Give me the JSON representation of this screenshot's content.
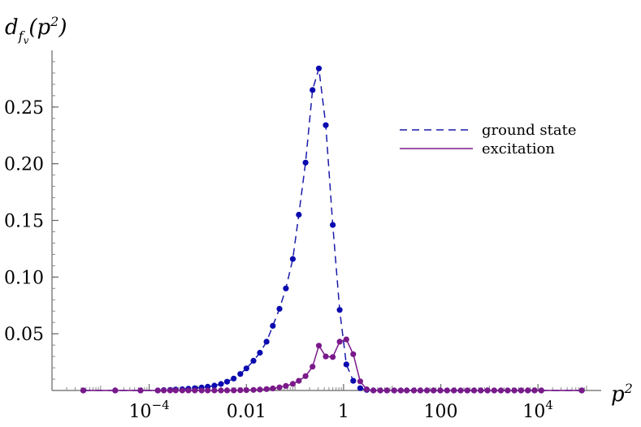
{
  "chart_data": {
    "type": "line",
    "x_scale": "log",
    "xlabel": "p^2",
    "ylabel": "d_{f_v}(p^2)",
    "xlim": [
      1e-06,
      200000
    ],
    "ylim": [
      0,
      0.3
    ],
    "x_ticks": [
      {
        "value": 0.0001,
        "label": "10^-4"
      },
      {
        "value": 0.01,
        "label": "0.01"
      },
      {
        "value": 1,
        "label": "1"
      },
      {
        "value": 100,
        "label": "100"
      },
      {
        "value": 10000,
        "label": "10^4"
      }
    ],
    "y_ticks": [
      {
        "value": 0.05,
        "label": "0.05"
      },
      {
        "value": 0.1,
        "label": "0.10"
      },
      {
        "value": 0.15,
        "label": "0.15"
      },
      {
        "value": 0.2,
        "label": "0.20"
      },
      {
        "value": 0.25,
        "label": "0.25"
      }
    ],
    "legend": {
      "placement": "top-right",
      "entries": [
        {
          "name": "ground state",
          "style": "dashed",
          "color": "#1a1aa8"
        },
        {
          "name": "excitation",
          "style": "solid",
          "color": "#7a1a8a"
        }
      ]
    },
    "series": [
      {
        "name": "ground state",
        "color": "#1a1aa8",
        "marker_color": "#0a0ab0",
        "line_style": "dashed",
        "x": [
          4.4e-06,
          2e-05,
          6.65e-05,
          0.00015,
          0.0002,
          0.00027,
          0.00035,
          0.00048,
          0.00064,
          0.00087,
          0.0012,
          0.0016,
          0.0022,
          0.003,
          0.004,
          0.0055,
          0.0075,
          0.01,
          0.014,
          0.019,
          0.026,
          0.035,
          0.048,
          0.065,
          0.09,
          0.12,
          0.165,
          0.23,
          0.31,
          0.43,
          0.6,
          0.83,
          1.14,
          1.58,
          2.2,
          3.0,
          4.1,
          5.7,
          7.8,
          11,
          15,
          20,
          28,
          38,
          52,
          71,
          98,
          135,
          186,
          256,
          352,
          484,
          665,
          915,
          1258,
          1730,
          2380,
          3270,
          4500,
          6190,
          8510,
          11700,
          79600
        ],
        "y": [
          0.0,
          0.0,
          0.0,
          0.0,
          0.0003,
          0.0005,
          0.0008,
          0.0011,
          0.0015,
          0.002,
          0.0026,
          0.0033,
          0.0043,
          0.0057,
          0.0077,
          0.0105,
          0.0145,
          0.0195,
          0.0262,
          0.0333,
          0.043,
          0.057,
          0.072,
          0.09,
          0.116,
          0.155,
          0.201,
          0.265,
          0.284,
          0.234,
          0.146,
          0.071,
          0.023,
          0.0085,
          0.002,
          0.0005,
          0.0,
          0.0,
          0.0,
          0.0,
          0.0,
          0.0,
          0.0,
          0.0,
          0.0,
          0.0,
          0.0,
          0.0,
          0.0,
          0.0,
          0.0,
          0.0,
          0.0,
          0.0,
          0.0,
          0.0,
          0.0,
          0.0,
          0.0,
          0.0,
          0.0,
          0.0,
          0.0
        ]
      },
      {
        "name": "excitation",
        "color": "#7a1a8a",
        "marker_color": "#7a1a8a",
        "line_style": "solid",
        "x": [
          4.4e-06,
          2e-05,
          6.65e-05,
          0.00015,
          0.0002,
          0.00027,
          0.00035,
          0.00048,
          0.00064,
          0.00087,
          0.0012,
          0.0016,
          0.0022,
          0.003,
          0.004,
          0.0055,
          0.0075,
          0.01,
          0.014,
          0.019,
          0.026,
          0.035,
          0.048,
          0.065,
          0.09,
          0.12,
          0.165,
          0.23,
          0.31,
          0.43,
          0.6,
          0.83,
          1.14,
          1.58,
          2.2,
          3.0,
          4.1,
          5.7,
          7.8,
          11,
          15,
          20,
          28,
          38,
          52,
          71,
          98,
          135,
          186,
          256,
          352,
          484,
          665,
          915,
          1258,
          1730,
          2380,
          3270,
          4500,
          6190,
          8510,
          11700,
          79600
        ],
        "y": [
          0.0,
          0.0,
          0.0,
          0.0,
          0.0,
          0.0,
          0.0,
          0.0,
          0.0,
          0.0,
          0.0,
          0.0,
          0.0,
          0.0,
          0.0001,
          0.0001,
          0.0002,
          0.0003,
          0.0005,
          0.0008,
          0.0012,
          0.0018,
          0.0027,
          0.004,
          0.0058,
          0.0085,
          0.0127,
          0.021,
          0.0395,
          0.03,
          0.0295,
          0.043,
          0.045,
          0.032,
          0.008,
          0.001,
          0.0,
          0.0,
          0.0,
          0.0,
          0.0,
          0.0,
          0.0,
          0.0,
          0.0,
          0.0,
          0.0,
          0.0,
          0.0,
          0.0,
          0.0,
          0.0,
          0.0,
          0.0,
          0.0,
          0.0,
          0.0,
          0.0,
          0.0,
          0.0,
          0.0,
          0.0,
          0.0
        ]
      }
    ]
  }
}
